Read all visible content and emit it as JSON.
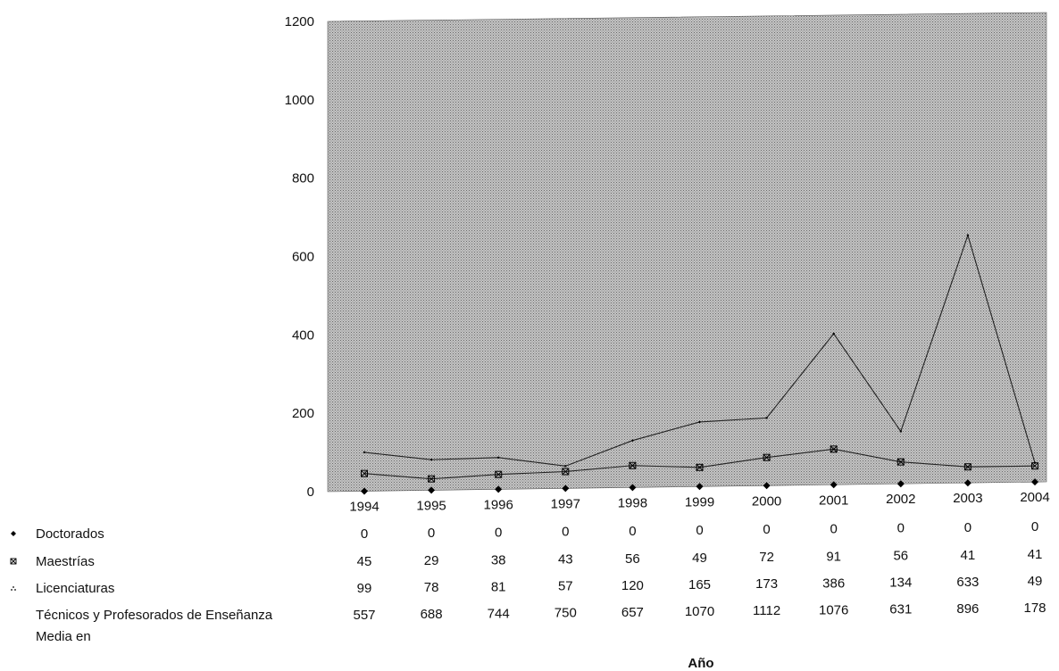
{
  "chart_data": {
    "type": "line",
    "xlabel": "Año",
    "ylabel": "",
    "ylim": [
      0,
      1200
    ],
    "yticks": [
      0,
      200,
      400,
      600,
      800,
      1000,
      1200
    ],
    "categories": [
      "1994",
      "1995",
      "1996",
      "1997",
      "1998",
      "1999",
      "2000",
      "2001",
      "2002",
      "2003",
      "2004"
    ],
    "series": [
      {
        "name": "Doctorados",
        "values": [
          0,
          0,
          0,
          0,
          0,
          0,
          0,
          0,
          0,
          0,
          0
        ],
        "marker": "diamond"
      },
      {
        "name": "Maestrías",
        "values": [
          45,
          29,
          38,
          43,
          56,
          49,
          72,
          91,
          56,
          41,
          41
        ],
        "marker": "x-square"
      },
      {
        "name": "Licenciaturas",
        "values": [
          99,
          78,
          81,
          57,
          120,
          165,
          173,
          386,
          134,
          633,
          49
        ],
        "marker": "dots"
      },
      {
        "name_lines": [
          "Técnicos y Profesorados de Enseñanza",
          "Media en"
        ],
        "values": [
          557,
          688,
          744,
          750,
          657,
          1070,
          1112,
          1076,
          631,
          896,
          178
        ],
        "marker": "none",
        "plotted": false
      }
    ],
    "plot_background": "#a9a9a9",
    "line_color": "#222222",
    "grid": false,
    "legend": "bottom-left data table"
  }
}
